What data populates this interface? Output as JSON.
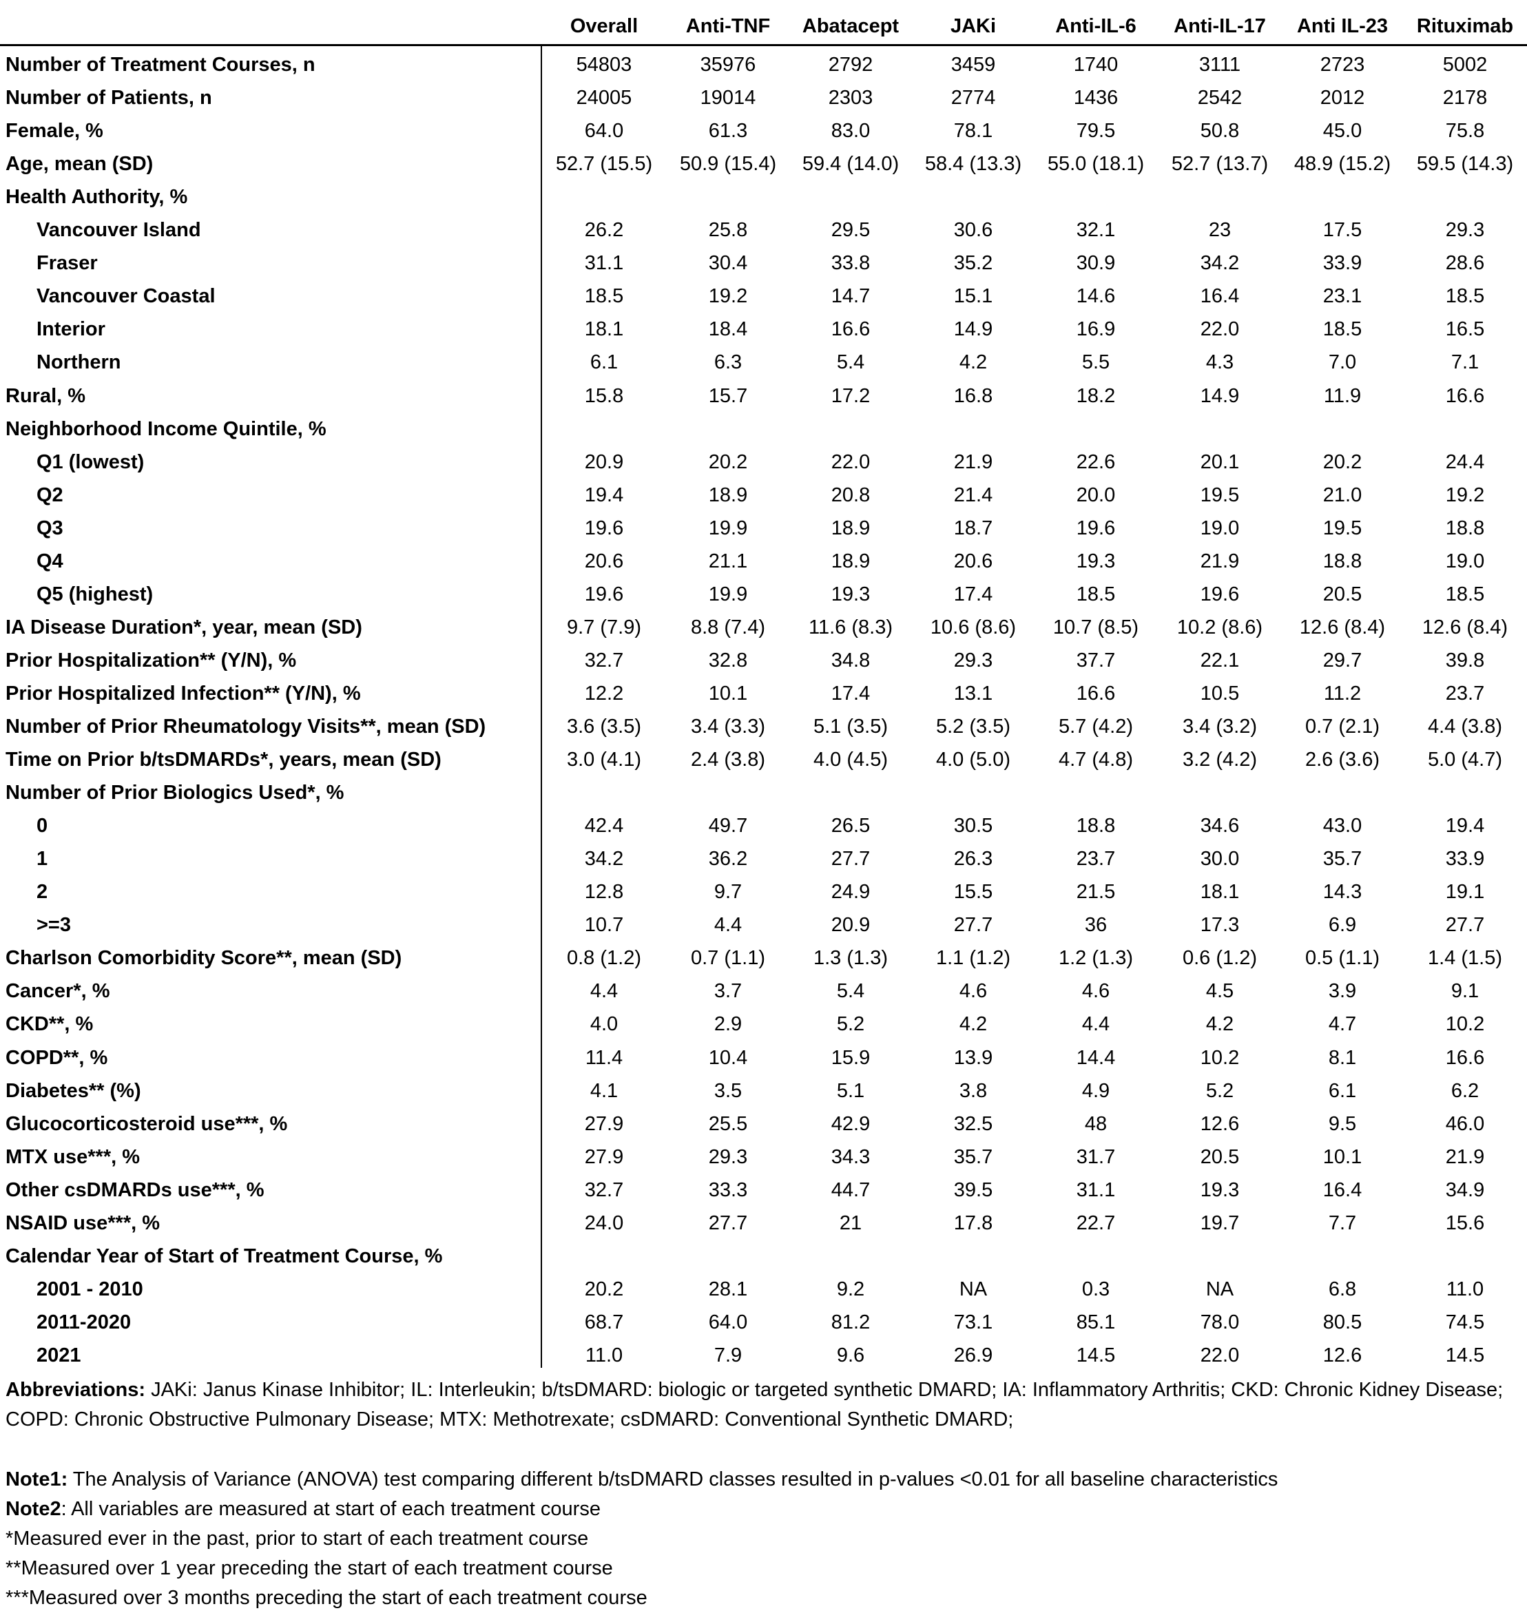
{
  "table": {
    "columns": [
      "Overall",
      "Anti-TNF",
      "Abatacept",
      "JAKi",
      "Anti-IL-6",
      "Anti-IL-17",
      "Anti IL-23",
      "Rituximab"
    ],
    "rows": [
      {
        "label": "Number of Treatment Courses, n",
        "indent": 0,
        "values": [
          "54803",
          "35976",
          "2792",
          "3459",
          "1740",
          "3111",
          "2723",
          "5002"
        ]
      },
      {
        "label": "Number of Patients, n",
        "indent": 0,
        "values": [
          "24005",
          "19014",
          "2303",
          "2774",
          "1436",
          "2542",
          "2012",
          "2178"
        ]
      },
      {
        "label": "Female, %",
        "indent": 0,
        "values": [
          "64.0",
          "61.3",
          "83.0",
          "78.1",
          "79.5",
          "50.8",
          "45.0",
          "75.8"
        ]
      },
      {
        "label": "Age, mean (SD)",
        "indent": 0,
        "values": [
          "52.7 (15.5)",
          "50.9 (15.4)",
          "59.4 (14.0)",
          "58.4 (13.3)",
          "55.0 (18.1)",
          "52.7 (13.7)",
          "48.9 (15.2)",
          "59.5 (14.3)"
        ]
      },
      {
        "label": "Health Authority, %",
        "indent": 0,
        "values": []
      },
      {
        "label": "Vancouver Island",
        "indent": 1,
        "values": [
          "26.2",
          "25.8",
          "29.5",
          "30.6",
          "32.1",
          "23",
          "17.5",
          "29.3"
        ]
      },
      {
        "label": "Fraser",
        "indent": 1,
        "values": [
          "31.1",
          "30.4",
          "33.8",
          "35.2",
          "30.9",
          "34.2",
          "33.9",
          "28.6"
        ]
      },
      {
        "label": "Vancouver Coastal",
        "indent": 1,
        "values": [
          "18.5",
          "19.2",
          "14.7",
          "15.1",
          "14.6",
          "16.4",
          "23.1",
          "18.5"
        ]
      },
      {
        "label": "Interior",
        "indent": 1,
        "values": [
          "18.1",
          "18.4",
          "16.6",
          "14.9",
          "16.9",
          "22.0",
          "18.5",
          "16.5"
        ]
      },
      {
        "label": "Northern",
        "indent": 1,
        "values": [
          "6.1",
          "6.3",
          "5.4",
          "4.2",
          "5.5",
          "4.3",
          "7.0",
          "7.1"
        ]
      },
      {
        "label": "Rural, %",
        "indent": 0,
        "values": [
          "15.8",
          "15.7",
          "17.2",
          "16.8",
          "18.2",
          "14.9",
          "11.9",
          "16.6"
        ]
      },
      {
        "label": "Neighborhood Income Quintile, %",
        "indent": 0,
        "values": []
      },
      {
        "label": "Q1 (lowest)",
        "indent": 1,
        "values": [
          "20.9",
          "20.2",
          "22.0",
          "21.9",
          "22.6",
          "20.1",
          "20.2",
          "24.4"
        ]
      },
      {
        "label": "Q2",
        "indent": 1,
        "values": [
          "19.4",
          "18.9",
          "20.8",
          "21.4",
          "20.0",
          "19.5",
          "21.0",
          "19.2"
        ]
      },
      {
        "label": "Q3",
        "indent": 1,
        "values": [
          "19.6",
          "19.9",
          "18.9",
          "18.7",
          "19.6",
          "19.0",
          "19.5",
          "18.8"
        ]
      },
      {
        "label": "Q4",
        "indent": 1,
        "values": [
          "20.6",
          "21.1",
          "18.9",
          "20.6",
          "19.3",
          "21.9",
          "18.8",
          "19.0"
        ]
      },
      {
        "label": "Q5 (highest)",
        "indent": 1,
        "values": [
          "19.6",
          "19.9",
          "19.3",
          "17.4",
          "18.5",
          "19.6",
          "20.5",
          "18.5"
        ]
      },
      {
        "label": "IA Disease Duration*, year, mean (SD)",
        "indent": 0,
        "values": [
          "9.7 (7.9)",
          "8.8 (7.4)",
          "11.6 (8.3)",
          "10.6 (8.6)",
          "10.7 (8.5)",
          "10.2 (8.6)",
          "12.6 (8.4)",
          "12.6 (8.4)"
        ]
      },
      {
        "label": "Prior Hospitalization** (Y/N), %",
        "indent": 0,
        "values": [
          "32.7",
          "32.8",
          "34.8",
          "29.3",
          "37.7",
          "22.1",
          "29.7",
          "39.8"
        ]
      },
      {
        "label": "Prior Hospitalized Infection** (Y/N), %",
        "indent": 0,
        "values": [
          "12.2",
          "10.1",
          "17.4",
          "13.1",
          "16.6",
          "10.5",
          "11.2",
          "23.7"
        ]
      },
      {
        "label": "Number of Prior Rheumatology Visits**, mean (SD)",
        "indent": 0,
        "values": [
          "3.6 (3.5)",
          "3.4 (3.3)",
          "5.1 (3.5)",
          "5.2 (3.5)",
          "5.7 (4.2)",
          "3.4 (3.2)",
          "0.7 (2.1)",
          "4.4 (3.8)"
        ]
      },
      {
        "label": "Time on Prior b/tsDMARDs*, years, mean (SD)",
        "indent": 0,
        "values": [
          "3.0 (4.1)",
          "2.4 (3.8)",
          "4.0 (4.5)",
          "4.0 (5.0)",
          "4.7 (4.8)",
          "3.2 (4.2)",
          "2.6 (3.6)",
          "5.0 (4.7)"
        ]
      },
      {
        "label": "Number of Prior Biologics Used*, %",
        "indent": 0,
        "values": []
      },
      {
        "label": "0",
        "indent": 1,
        "values": [
          "42.4",
          "49.7",
          "26.5",
          "30.5",
          "18.8",
          "34.6",
          "43.0",
          "19.4"
        ]
      },
      {
        "label": "1",
        "indent": 1,
        "values": [
          "34.2",
          "36.2",
          "27.7",
          "26.3",
          "23.7",
          "30.0",
          "35.7",
          "33.9"
        ]
      },
      {
        "label": "2",
        "indent": 1,
        "values": [
          "12.8",
          "9.7",
          "24.9",
          "15.5",
          "21.5",
          "18.1",
          "14.3",
          "19.1"
        ]
      },
      {
        "label": ">=3",
        "indent": 1,
        "values": [
          "10.7",
          "4.4",
          "20.9",
          "27.7",
          "36",
          "17.3",
          "6.9",
          "27.7"
        ]
      },
      {
        "label": "Charlson Comorbidity Score**, mean (SD)",
        "indent": 0,
        "values": [
          "0.8 (1.2)",
          "0.7 (1.1)",
          "1.3 (1.3)",
          "1.1 (1.2)",
          "1.2 (1.3)",
          "0.6 (1.2)",
          "0.5 (1.1)",
          "1.4 (1.5)"
        ]
      },
      {
        "label": "Cancer*, %",
        "indent": 0,
        "values": [
          "4.4",
          "3.7",
          "5.4",
          "4.6",
          "4.6",
          "4.5",
          "3.9",
          "9.1"
        ]
      },
      {
        "label": "CKD**, %",
        "indent": 0,
        "values": [
          "4.0",
          "2.9",
          "5.2",
          "4.2",
          "4.4",
          "4.2",
          "4.7",
          "10.2"
        ]
      },
      {
        "label": "COPD**, %",
        "indent": 0,
        "values": [
          "11.4",
          "10.4",
          "15.9",
          "13.9",
          "14.4",
          "10.2",
          "8.1",
          "16.6"
        ]
      },
      {
        "label": "Diabetes** (%)",
        "indent": 0,
        "values": [
          "4.1",
          "3.5",
          "5.1",
          "3.8",
          "4.9",
          "5.2",
          "6.1",
          "6.2"
        ]
      },
      {
        "label": "Glucocorticosteroid use***, %",
        "indent": 0,
        "values": [
          "27.9",
          "25.5",
          "42.9",
          "32.5",
          "48",
          "12.6",
          "9.5",
          "46.0"
        ]
      },
      {
        "label": "MTX use***, %",
        "indent": 0,
        "values": [
          "27.9",
          "29.3",
          "34.3",
          "35.7",
          "31.7",
          "20.5",
          "10.1",
          "21.9"
        ]
      },
      {
        "label": "Other csDMARDs use***, %",
        "indent": 0,
        "values": [
          "32.7",
          "33.3",
          "44.7",
          "39.5",
          "31.1",
          "19.3",
          "16.4",
          "34.9"
        ]
      },
      {
        "label": "NSAID use***, %",
        "indent": 0,
        "values": [
          "24.0",
          "27.7",
          "21",
          "17.8",
          "22.7",
          "19.7",
          "7.7",
          "15.6"
        ]
      },
      {
        "label": "Calendar Year of Start of Treatment Course, %",
        "indent": 0,
        "values": []
      },
      {
        "label": "2001 - 2010",
        "indent": 1,
        "values": [
          "20.2",
          "28.1",
          "9.2",
          "NA",
          "0.3",
          "NA",
          "6.8",
          "11.0"
        ]
      },
      {
        "label": "2011-2020",
        "indent": 1,
        "values": [
          "68.7",
          "64.0",
          "81.2",
          "73.1",
          "85.1",
          "78.0",
          "80.5",
          "74.5"
        ]
      },
      {
        "label": "2021",
        "indent": 1,
        "values": [
          "11.0",
          "7.9",
          "9.6",
          "26.9",
          "14.5",
          "22.0",
          "12.6",
          "14.5"
        ]
      }
    ]
  },
  "footnotes": {
    "abbrev_label": "Abbreviations:",
    "abbrev_text": " JAKi: Janus Kinase Inhibitor; IL: Interleukin; b/tsDMARD: biologic or targeted synthetic DMARD; IA: Inflammatory Arthritis; CKD: Chronic Kidney Disease; COPD: Chronic Obstructive Pulmonary Disease; MTX: Methotrexate; csDMARD: Conventional Synthetic DMARD;",
    "note1_label": "Note1:",
    "note1_text": " The Analysis of Variance (ANOVA) test comparing different b/tsDMARD classes resulted in p-values <0.01 for all baseline characteristics",
    "note2_label": "Note2",
    "note2_text": ": All variables are measured at start of each treatment course",
    "star1": "*Measured ever in the past, prior to start of each treatment course",
    "star2": "**Measured over 1 year preceding the start of each treatment course",
    "star3": "***Measured over 3 months preceding the start of each treatment course"
  }
}
